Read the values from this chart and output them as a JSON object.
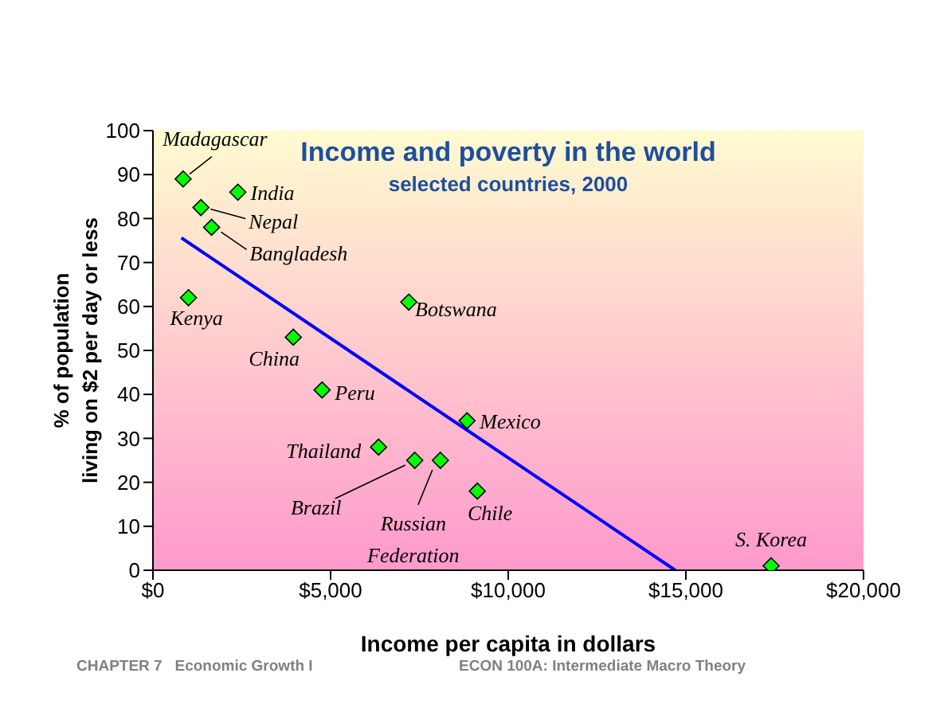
{
  "chart_data": {
    "type": "scatter",
    "title": "Income and poverty in the world",
    "subtitle": "selected countries, 2000",
    "xlabel": "Income per capita in dollars",
    "ylabel": "% of population living on $2 per day or less",
    "xlim": [
      0,
      20000
    ],
    "xticks": [
      {
        "value": 0,
        "label": "$0"
      },
      {
        "value": 5000,
        "label": "$5,000"
      },
      {
        "value": 10000,
        "label": "$10,000"
      },
      {
        "value": 15000,
        "label": "$15,000"
      },
      {
        "value": 20000,
        "label": "$20,000"
      }
    ],
    "ylim": [
      0,
      100
    ],
    "yticks": [
      0,
      10,
      20,
      30,
      40,
      50,
      60,
      70,
      80,
      90,
      100
    ],
    "grid": false,
    "line_style": "solid",
    "series": [
      {
        "marker": "diamond",
        "color": "#00ff00",
        "x": [
          850,
          2390,
          1350,
          1650,
          1000,
          3950,
          4760,
          7200,
          8840,
          6350,
          7370,
          8090,
          9130,
          17400
        ],
        "values": [
          89,
          86,
          82.5,
          78,
          62,
          53,
          41,
          61,
          34,
          28,
          25,
          25,
          18,
          1
        ]
      },
      {
        "type": "line",
        "color": "#0000ff",
        "x": [
          800,
          14700
        ],
        "values": [
          75.6,
          0
        ]
      }
    ],
    "annotations": [
      {
        "text": "Madagascar",
        "x": 850,
        "y": 89
      },
      {
        "text": "India",
        "x": 2390,
        "y": 86
      },
      {
        "text": "Nepal",
        "x": 1350,
        "y": 82.5
      },
      {
        "text": "Bangladesh",
        "x": 1650,
        "y": 78
      },
      {
        "text": "Kenya",
        "x": 1000,
        "y": 62
      },
      {
        "text": "China",
        "x": 3950,
        "y": 53
      },
      {
        "text": "Peru",
        "x": 4760,
        "y": 41
      },
      {
        "text": "Botswana",
        "x": 7200,
        "y": 61
      },
      {
        "text": "Mexico",
        "x": 8840,
        "y": 34
      },
      {
        "text": "Thailand",
        "x": 6350,
        "y": 28
      },
      {
        "text": "Brazil",
        "x": 7370,
        "y": 25
      },
      {
        "text": "Russian Federation",
        "x": 8090,
        "y": 25
      },
      {
        "text": "Chile",
        "x": 9130,
        "y": 18
      },
      {
        "text": "S. Korea",
        "x": 17400,
        "y": 1
      },
      "CHAPTER 7   Economic Growth I",
      "ECON 100A: Intermediate Macro Theory"
    ]
  }
}
